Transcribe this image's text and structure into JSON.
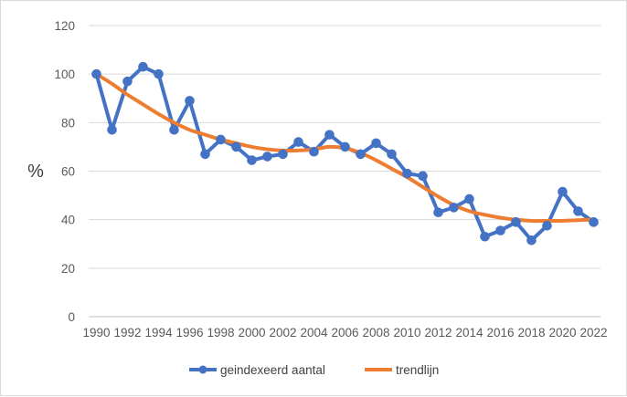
{
  "chart_data": {
    "type": "line",
    "title": "",
    "xlabel": "",
    "ylabel": "%",
    "ylim": [
      0,
      120
    ],
    "yticks": [
      0,
      20,
      40,
      60,
      80,
      100,
      120
    ],
    "x_tick_labels": [
      "1990",
      "1992",
      "1994",
      "1996",
      "1998",
      "2000",
      "2002",
      "2004",
      "2006",
      "2008",
      "2010",
      "2012",
      "2014",
      "2016",
      "2018",
      "2020",
      "2022"
    ],
    "x": [
      1990,
      1991,
      1992,
      1993,
      1994,
      1995,
      1996,
      1997,
      1998,
      1999,
      2000,
      2001,
      2002,
      2003,
      2004,
      2005,
      2006,
      2007,
      2008,
      2009,
      2010,
      2011,
      2012,
      2013,
      2014,
      2015,
      2016,
      2017,
      2018,
      2019,
      2020,
      2021,
      2022
    ],
    "grid": true,
    "legend_position": "bottom",
    "series": [
      {
        "name": "geindexeerd aantal",
        "color": "#4472C4",
        "marker": "circle",
        "values": [
          100,
          77,
          97,
          103,
          100,
          77,
          89,
          67,
          73,
          70,
          64.5,
          66,
          67,
          72,
          68,
          75,
          70,
          67,
          71.5,
          67,
          59,
          58,
          43,
          45,
          48.5,
          33,
          35.5,
          39,
          31.5,
          37.5,
          51.5,
          43.5,
          39
        ]
      },
      {
        "name": "trendlijn",
        "color": "#ED7D31",
        "marker": "none",
        "values": [
          100,
          96,
          91.5,
          87.5,
          83.5,
          80,
          77,
          75,
          73,
          71.5,
          70,
          69,
          68.5,
          68.5,
          69,
          70,
          69.5,
          67.5,
          64.5,
          61,
          57.5,
          53.5,
          49.5,
          46,
          43.5,
          42,
          40.8,
          40,
          39.5,
          39.5,
          39.5,
          39.8,
          40
        ]
      }
    ]
  }
}
